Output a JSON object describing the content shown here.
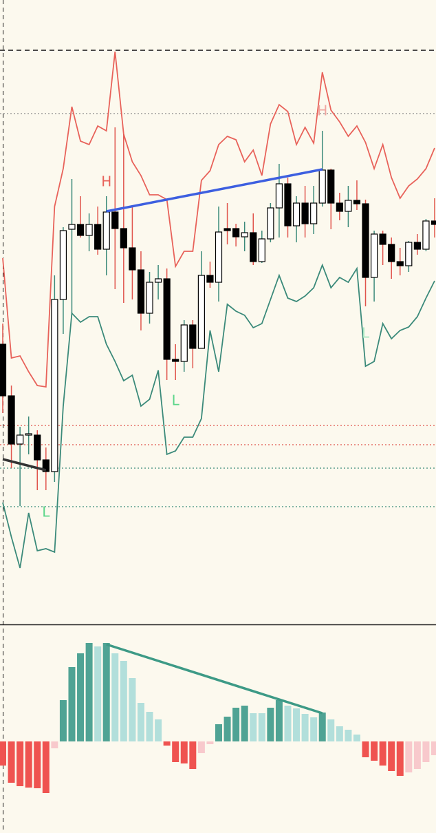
{
  "chart_data": [
    {
      "type": "candlestick",
      "ylim": [
        93,
        1000
      ],
      "open": [
        500,
        425,
        355,
        368,
        368,
        332,
        315,
        565,
        667,
        674,
        658,
        674,
        638,
        692,
        668,
        640,
        608,
        545,
        590,
        595,
        478,
        475,
        528,
        494,
        600,
        590,
        668,
        668,
        656,
        662,
        620,
        653,
        698,
        733,
        672,
        705,
        675,
        705,
        753,
        705,
        693,
        709,
        704,
        597,
        660,
        645,
        620,
        614,
        648,
        638,
        679
      ],
      "high": [
        530,
        440,
        380,
        395,
        375,
        350,
        600,
        670,
        740,
        715,
        690,
        700,
        715,
        815,
        805,
        700,
        635,
        605,
        615,
        610,
        500,
        535,
        535,
        635,
        620,
        700,
        705,
        675,
        678,
        690,
        665,
        705,
        762,
        742,
        715,
        730,
        730,
        810,
        755,
        720,
        730,
        738,
        710,
        665,
        665,
        655,
        640,
        650,
        660,
        682,
        712
      ],
      "low": [
        400,
        320,
        265,
        340,
        288,
        288,
        300,
        515,
        545,
        655,
        635,
        630,
        600,
        580,
        560,
        565,
        520,
        530,
        565,
        448,
        448,
        460,
        465,
        495,
        582,
        562,
        645,
        642,
        635,
        615,
        618,
        648,
        655,
        655,
        648,
        655,
        660,
        700,
        667,
        680,
        670,
        695,
        555,
        562,
        615,
        595,
        600,
        605,
        630,
        635,
        655
      ],
      "close": [
        425,
        355,
        368,
        370,
        332,
        315,
        565,
        665,
        674,
        658,
        674,
        638,
        692,
        668,
        640,
        608,
        545,
        590,
        595,
        478,
        475,
        528,
        494,
        600,
        590,
        663,
        665,
        656,
        662,
        620,
        653,
        698,
        733,
        672,
        705,
        675,
        705,
        753,
        705,
        693,
        709,
        704,
        597,
        660,
        645,
        620,
        614,
        648,
        638,
        679,
        674
      ],
      "up_color": "#ffffff",
      "down_color": "#000000",
      "up_wick": "#3b8a7a",
      "down_wick": "#e0544c",
      "lines": [
        {
          "color": "#e8625a",
          "values": [
            625,
            480,
            483,
            460,
            440,
            438,
            700,
            755,
            845,
            795,
            790,
            817,
            810,
            925,
            805,
            765,
            745,
            717,
            717,
            710,
            613,
            635,
            635,
            738,
            752,
            790,
            802,
            797,
            765,
            782,
            745,
            820,
            848,
            838,
            790,
            815,
            792,
            895,
            840,
            823,
            802,
            817,
            793,
            755,
            790,
            742,
            712,
            730,
            740,
            755,
            785
          ]
        },
        {
          "color": "#3b8a7a",
          "values": [
            270,
            220,
            175,
            255,
            200,
            203,
            198,
            410,
            545,
            532,
            540,
            540,
            500,
            475,
            447,
            455,
            410,
            420,
            462,
            340,
            345,
            365,
            365,
            392,
            520,
            460,
            558,
            548,
            542,
            524,
            530,
            565,
            600,
            567,
            562,
            570,
            582,
            615,
            582,
            597,
            590,
            610,
            468,
            475,
            530,
            508,
            520,
            525,
            540,
            567,
            592
          ]
        }
      ],
      "levels": [
        {
          "value": 927,
          "color": "#111111",
          "style": "dashed"
        },
        {
          "value": 835,
          "color": "#8a8a8a",
          "style": "dotted"
        },
        {
          "value": 382,
          "color": "#e0544c",
          "style": "dotted"
        },
        {
          "value": 354,
          "color": "#e0544c",
          "style": "dotted"
        },
        {
          "value": 320,
          "color": "#3b8a7a",
          "style": "dotted"
        },
        {
          "value": 264,
          "color": "#3b8a7a",
          "style": "dotted"
        }
      ],
      "trendlines": [
        {
          "x": [
            12,
            37
          ],
          "y": [
            693,
            754
          ],
          "color": "#3d5fe0"
        },
        {
          "x": [
            0,
            5
          ],
          "y": [
            333,
            317
          ],
          "color": "#333333"
        }
      ],
      "annotations": [
        {
          "text": "H",
          "x": 12,
          "y": 735,
          "color": "#e8625a"
        },
        {
          "text": "H",
          "x": 37,
          "y": 838,
          "color": "#f0a6a0"
        },
        {
          "text": "L",
          "x": 20,
          "y": 417,
          "color": "#5cd68a"
        },
        {
          "text": "L",
          "x": 5,
          "y": 255,
          "color": "#5cd68a"
        },
        {
          "text": "L",
          "x": 42,
          "y": 515,
          "color": "#a8e6c0"
        }
      ]
    },
    {
      "type": "bar",
      "ylim": [
        -133,
        170
      ],
      "values": [
        -35,
        -60,
        -65,
        -67,
        -68,
        -75,
        -10,
        60,
        108,
        128,
        143,
        138,
        143,
        128,
        117,
        92,
        56,
        43,
        32,
        -6,
        -30,
        -32,
        -40,
        -17,
        -4,
        25,
        36,
        49,
        52,
        41,
        41,
        49,
        60,
        52,
        48,
        40,
        35,
        42,
        32,
        22,
        17,
        10,
        -23,
        -28,
        -35,
        -43,
        -50,
        -45,
        -40,
        -30,
        -20
      ],
      "colors": [
        "#ef5350",
        "#ef5350",
        "#ef5350",
        "#ef5350",
        "#ef5350",
        "#ef5350",
        "#f8c9cc",
        "#4fa394",
        "#4fa394",
        "#4fa394",
        "#4fa394",
        "#b2dfdb",
        "#4fa394",
        "#b2dfdb",
        "#b2dfdb",
        "#b2dfdb",
        "#b2dfdb",
        "#b2dfdb",
        "#b2dfdb",
        "#ef5350",
        "#ef5350",
        "#ef5350",
        "#ef5350",
        "#f8c9cc",
        "#f8c9cc",
        "#4fa394",
        "#4fa394",
        "#4fa394",
        "#4fa394",
        "#b2dfdb",
        "#b2dfdb",
        "#4fa394",
        "#4fa394",
        "#b2dfdb",
        "#b2dfdb",
        "#b2dfdb",
        "#b2dfdb",
        "#4fa394",
        "#b2dfdb",
        "#b2dfdb",
        "#b2dfdb",
        "#b2dfdb",
        "#ef5350",
        "#ef5350",
        "#ef5350",
        "#ef5350",
        "#ef5350",
        "#f8c9cc",
        "#f8c9cc",
        "#f8c9cc",
        "#f8c9cc"
      ],
      "trendlines": [
        {
          "x": [
            12,
            37
          ],
          "y": [
            141,
            41
          ],
          "color": "#3d9a86"
        }
      ]
    }
  ]
}
